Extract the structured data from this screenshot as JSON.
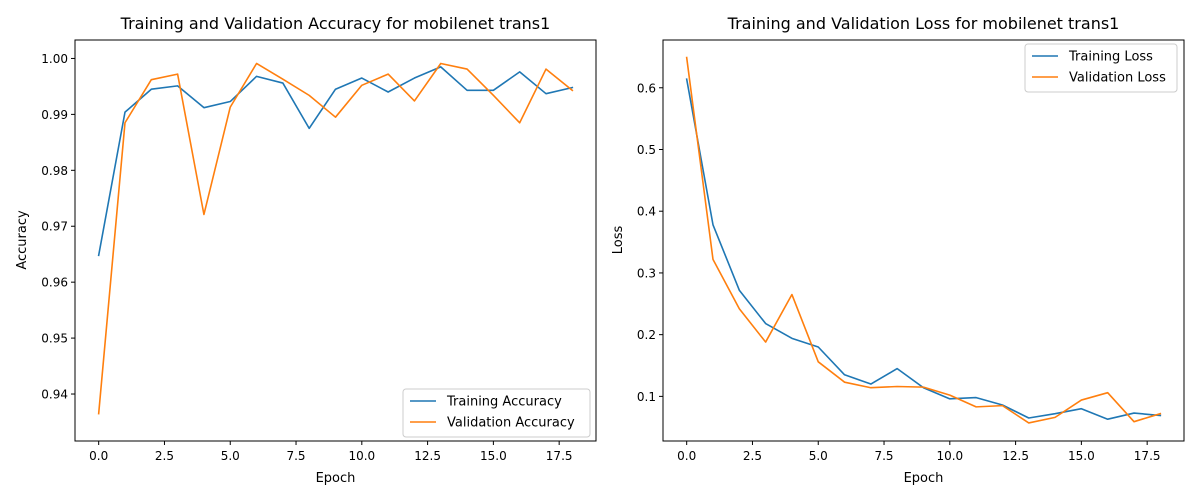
{
  "chart_data": [
    {
      "type": "line",
      "title": "Training and Validation Accuracy for mobilenet trans1",
      "xlabel": "Epoch",
      "ylabel": "Accuracy",
      "xlim": [
        -0.9,
        18.9
      ],
      "ylim": [
        0.9316,
        1.0033
      ],
      "xticks": [
        0.0,
        2.5,
        5.0,
        7.5,
        10.0,
        12.5,
        15.0,
        17.5
      ],
      "xtick_labels": [
        "0.0",
        "2.5",
        "5.0",
        "7.5",
        "10.0",
        "12.5",
        "15.0",
        "17.5"
      ],
      "yticks": [
        0.94,
        0.95,
        0.96,
        0.97,
        0.98,
        0.99,
        1.0
      ],
      "ytick_labels": [
        "0.94",
        "0.95",
        "0.96",
        "0.97",
        "0.98",
        "0.99",
        "1.00"
      ],
      "grid": false,
      "legend_position": "lower-right",
      "x": [
        0,
        1,
        2,
        3,
        4,
        5,
        6,
        7,
        8,
        9,
        10,
        11,
        12,
        13,
        14,
        15,
        16,
        17,
        18
      ],
      "series": [
        {
          "name": "Training Accuracy",
          "color": "#1f77b4",
          "values": [
            0.9648,
            0.9904,
            0.9945,
            0.9951,
            0.9912,
            0.9923,
            0.9968,
            0.9956,
            0.9875,
            0.9945,
            0.9965,
            0.994,
            0.9965,
            0.9985,
            0.9943,
            0.9943,
            0.9976,
            0.9937,
            0.9948
          ]
        },
        {
          "name": "Validation Accuracy",
          "color": "#ff7f0e",
          "values": [
            0.9365,
            0.9885,
            0.9962,
            0.9972,
            0.9721,
            0.9913,
            0.9991,
            0.9963,
            0.9934,
            0.9895,
            0.9952,
            0.9972,
            0.9924,
            0.9991,
            0.9981,
            0.9934,
            0.9885,
            0.9981,
            0.9943
          ]
        }
      ]
    },
    {
      "type": "line",
      "title": "Training and Validation Loss for mobilenet trans1",
      "xlabel": "Epoch",
      "ylabel": "Loss",
      "xlim": [
        -0.9,
        18.9
      ],
      "ylim": [
        0.0277,
        0.6774
      ],
      "xticks": [
        0.0,
        2.5,
        5.0,
        7.5,
        10.0,
        12.5,
        15.0,
        17.5
      ],
      "xtick_labels": [
        "0.0",
        "2.5",
        "5.0",
        "7.5",
        "10.0",
        "12.5",
        "15.0",
        "17.5"
      ],
      "yticks": [
        0.1,
        0.2,
        0.3,
        0.4,
        0.5,
        0.6
      ],
      "ytick_labels": [
        "0.1",
        "0.2",
        "0.3",
        "0.4",
        "0.5",
        "0.6"
      ],
      "grid": false,
      "legend_position": "upper-right",
      "x": [
        0,
        1,
        2,
        3,
        4,
        5,
        6,
        7,
        8,
        9,
        10,
        11,
        12,
        13,
        14,
        15,
        16,
        17,
        18
      ],
      "series": [
        {
          "name": "Training Loss",
          "color": "#1f77b4",
          "values": [
            0.614,
            0.378,
            0.272,
            0.218,
            0.194,
            0.18,
            0.135,
            0.12,
            0.145,
            0.114,
            0.096,
            0.098,
            0.086,
            0.065,
            0.072,
            0.08,
            0.063,
            0.073,
            0.069
          ]
        },
        {
          "name": "Validation Loss",
          "color": "#ff7f0e",
          "values": [
            0.649,
            0.322,
            0.242,
            0.188,
            0.265,
            0.156,
            0.123,
            0.114,
            0.116,
            0.115,
            0.102,
            0.083,
            0.085,
            0.057,
            0.066,
            0.094,
            0.106,
            0.059,
            0.072
          ]
        }
      ]
    }
  ]
}
